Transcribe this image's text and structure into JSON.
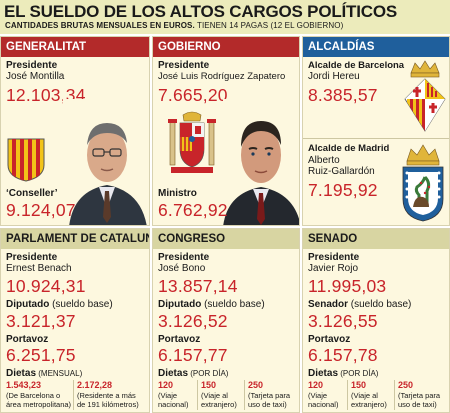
{
  "header": {
    "title": "EL SUELDO DE LOS ALTOS CARGOS POLÍTICOS",
    "subtitle_bold": "CANTIDADES BRUTAS MENSUALES EN EUROS.",
    "subtitle_rest": " TIENEN 14 PAGAS (12 EL GOBIERNO)"
  },
  "generalitat": {
    "heading": "GENERALITAT",
    "role1": "Presidente",
    "name1": "José Montilla",
    "value1": "12.103,34",
    "role2": "‘Conseller’",
    "value2": "9.124,07"
  },
  "gobierno": {
    "heading": "GOBIERNO",
    "role1": "Presidente",
    "name1": "José Luis Rodríguez Zapatero",
    "value1": "7.665,20",
    "role2": "Ministro",
    "value2": "6.762,92"
  },
  "alcaldias": {
    "heading": "ALCALDÍAS",
    "bcn_role": "Alcalde de Barcelona",
    "bcn_name": "Jordi Hereu",
    "bcn_value": "8.385,57",
    "mad_role": "Alcalde de Madrid",
    "mad_name1": "Alberto",
    "mad_name2": "Ruiz-Gallardón",
    "mad_value": "7.195,92"
  },
  "parlament": {
    "heading": "PARLAMENT DE CATALUNYA",
    "pres_role": "Presidente",
    "pres_name": "Ernest Benach",
    "pres_value": "10.924,31",
    "dip_role": "Diputado",
    "dip_paren": " (sueldo base)",
    "dip_value": "3.121,37",
    "port_role": "Portavoz",
    "port_value": "6.251,75",
    "dietas_role": "Dietas",
    "dietas_paren": " (MENSUAL)",
    "d1_value": "1.543,23",
    "d1_note1": "(De Barcelona o",
    "d1_note2": "área metropolitana)",
    "d2_value": "2.172,28",
    "d2_note1": "(Residente a más",
    "d2_note2": "de 191 kilómetros)"
  },
  "congreso": {
    "heading": "CONGRESO",
    "pres_role": "Presidente",
    "pres_name": "José Bono",
    "pres_value": "13.857,14",
    "dip_role": "Diputado",
    "dip_paren": " (sueldo base)",
    "dip_value": "3.126,52",
    "port_role": "Portavoz",
    "port_value": "6.157,77",
    "dietas_role": "Dietas",
    "dietas_paren": " (POR DÍA)",
    "d1_value": "120",
    "d1_note1": "(Viaje",
    "d1_note2": "nacional)",
    "d2_value": "150",
    "d2_note1": "(Viaje al",
    "d2_note2": "extranjero)",
    "d3_value": "250",
    "d3_note1": "(Tarjeta para",
    "d3_note2": "uso de taxi)"
  },
  "senado": {
    "heading": "SENADO",
    "pres_role": "Presidente",
    "pres_name": "Javier Rojo",
    "pres_value": "11.995,03",
    "dip_role": "Senador",
    "dip_paren": " (sueldo base)",
    "dip_value": "3.126,55",
    "port_role": "Portavoz",
    "port_value": "6.157,78",
    "dietas_role": "Dietas",
    "dietas_paren": " (POR DÍA)",
    "d1_value": "120",
    "d1_note1": "(Viaje",
    "d1_note2": "nacional)",
    "d2_value": "150",
    "d2_note1": "(Viaje al",
    "d2_note2": "extranjero)",
    "d3_value": "250",
    "d3_note1": "(Tarjeta para",
    "d3_note2": "uso de taxi)"
  },
  "colors": {
    "accent_red": "#c8242a",
    "generalitat_header": "#b32a2a",
    "gobierno_header": "#b32a2a",
    "alcaldias_header": "#1f5f9c",
    "lower_header": "#d8d5a2",
    "panel_bg": "#fdf8df",
    "title_band": "#ecebbb"
  },
  "icons": [
    "catalonia-flag-icon",
    "spain-coat-of-arms-icon",
    "barcelona-coat-of-arms-icon",
    "madrid-coat-of-arms-icon",
    "portrait-photo-montilla",
    "portrait-photo-zapatero"
  ]
}
